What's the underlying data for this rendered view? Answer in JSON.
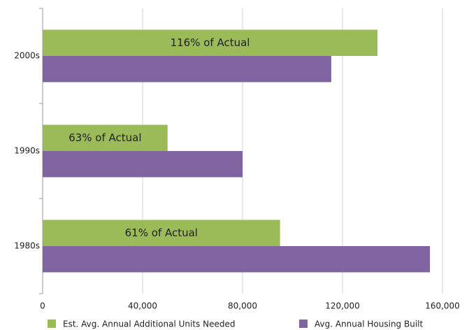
{
  "chart_data": {
    "type": "hbar",
    "categories": [
      "2000s",
      "1990s",
      "1980s"
    ],
    "series": [
      {
        "name": "Est. Avg. Annual Additional Units Needed",
        "color": "#9bbb59",
        "values": [
          134000,
          50000,
          95000
        ]
      },
      {
        "name": "Avg. Annual Housing Built",
        "color": "#8064a2",
        "values": [
          115500,
          80000,
          155000
        ]
      }
    ],
    "annotations": [
      "116% of Actual",
      "63% of Actual",
      "61% of Actual"
    ],
    "xlim": [
      0,
      160000
    ],
    "xticks": [
      0,
      {
        "value": 40000,
        "label": "40,000"
      },
      {
        "value": 80000,
        "label": "80,000"
      },
      {
        "value": 120000,
        "label": "120,000"
      },
      {
        "value": 160000,
        "label": "160,000"
      }
    ],
    "grid": true,
    "legend": "bottom"
  }
}
